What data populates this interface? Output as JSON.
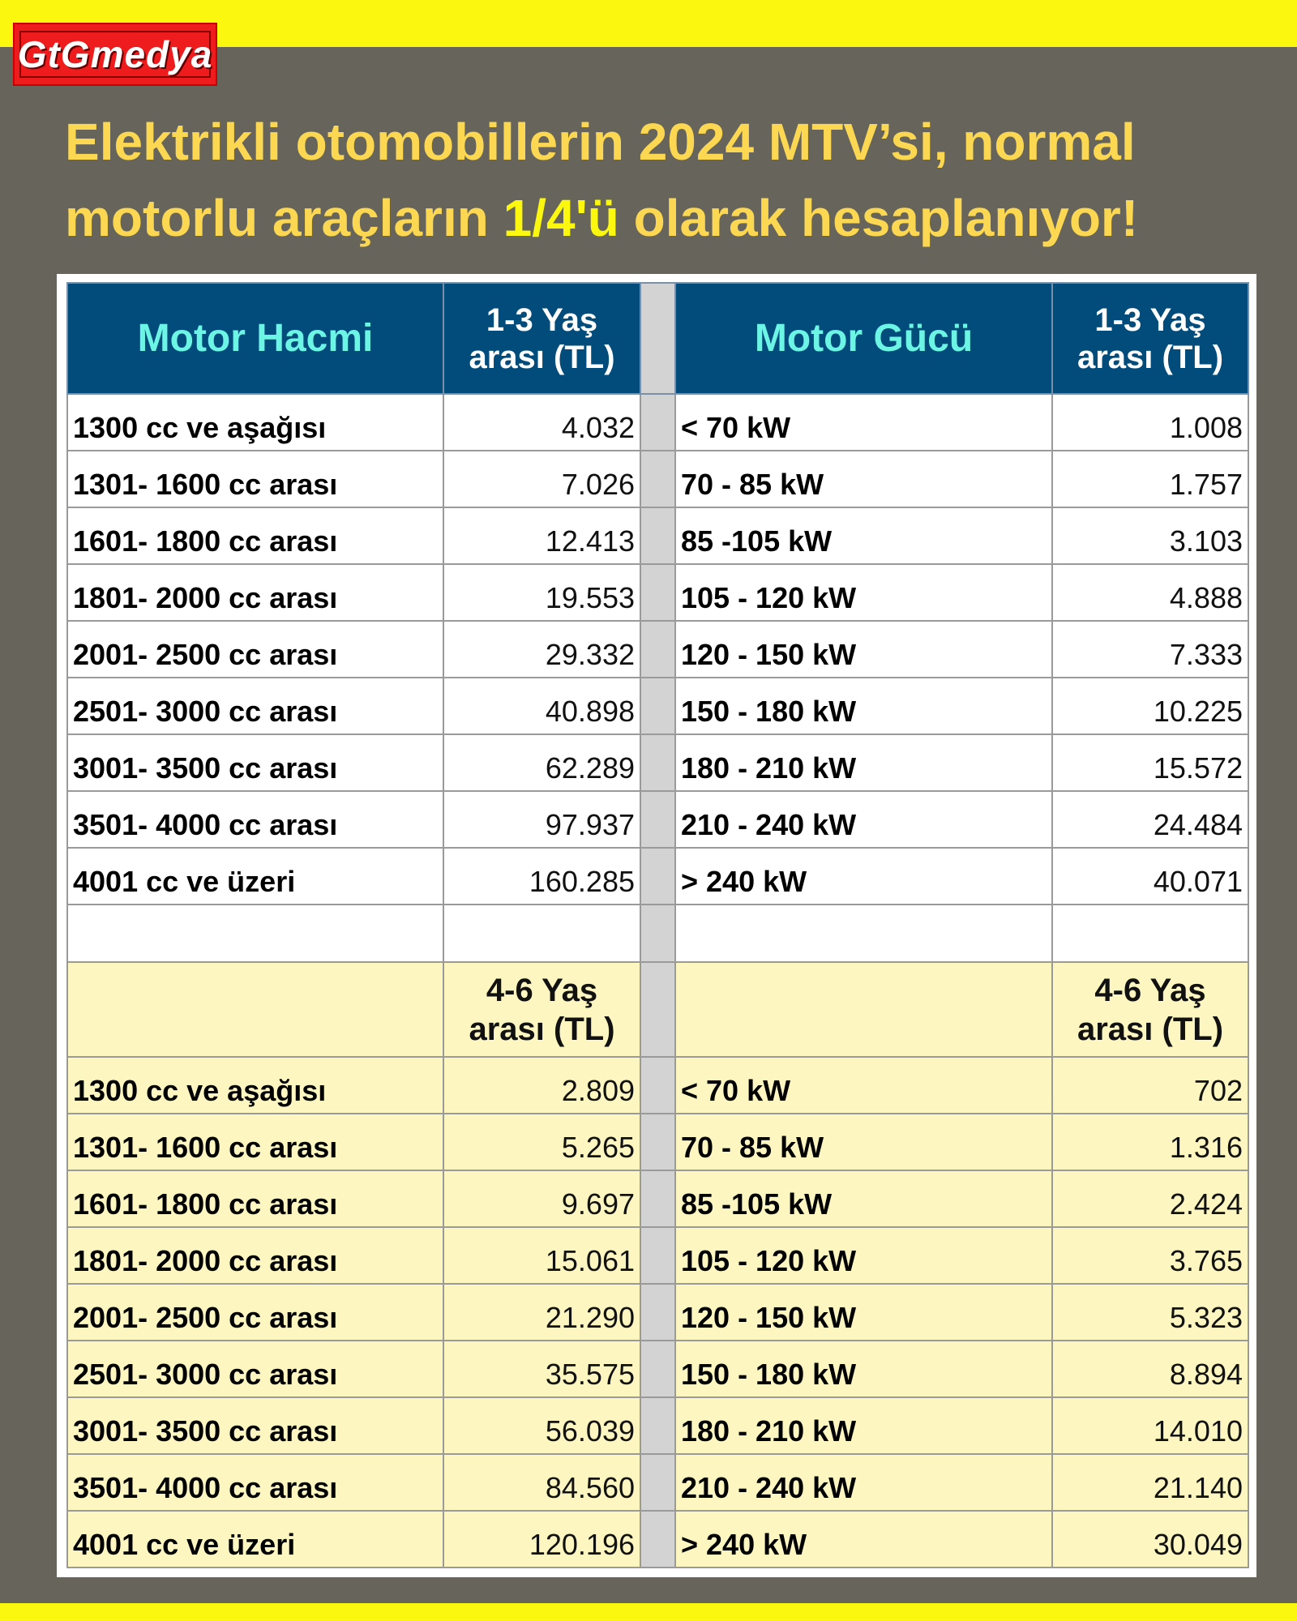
{
  "brand": {
    "logo_text": "GtGmedya",
    "colors": {
      "yellow": "#fbf70f",
      "red": "#ee1c1c",
      "navy": "#024c7c",
      "cyan": "#6cf4e4",
      "cream": "#fdf6c0",
      "bg": "#67645c"
    }
  },
  "title": {
    "part1": "Elektrikli otomobillerin 2024 MTV’si, normal motorlu araçların ",
    "highlight": "1/4'ü",
    "part2": " olarak hesaplanıyor!"
  },
  "table1": {
    "headers": [
      "Motor Hacmi",
      "1-3 Yaş arası (TL)",
      "Motor Gücü",
      "1-3 Yaş arası (TL)"
    ],
    "rows": [
      [
        "1300 cc ve aşağısı",
        "4.032",
        "< 70 kW",
        "1.008"
      ],
      [
        "1301- 1600 cc arası",
        "7.026",
        "70 - 85 kW",
        "1.757"
      ],
      [
        "1601- 1800 cc arası",
        "12.413",
        "85 -105 kW",
        "3.103"
      ],
      [
        "1801- 2000 cc arası",
        "19.553",
        "105 - 120 kW",
        "4.888"
      ],
      [
        "2001- 2500 cc arası",
        "29.332",
        "120 - 150 kW",
        "7.333"
      ],
      [
        "2501- 3000 cc arası",
        "40.898",
        "150 - 180 kW",
        "10.225"
      ],
      [
        "3001- 3500 cc arası",
        "62.289",
        "180 - 210 kW",
        "15.572"
      ],
      [
        "3501- 4000 cc arası",
        "97.937",
        "210 - 240 kW",
        "24.484"
      ],
      [
        "4001 cc ve üzeri",
        "160.285",
        "> 240 kW",
        "40.071"
      ]
    ]
  },
  "table2": {
    "headers": [
      "",
      "4-6 Yaş arası (TL)",
      "",
      "4-6 Yaş arası (TL)"
    ],
    "rows": [
      [
        "1300 cc ve aşağısı",
        "2.809",
        "< 70 kW",
        "702"
      ],
      [
        "1301- 1600 cc arası",
        "5.265",
        "70 - 85 kW",
        "1.316"
      ],
      [
        "1601- 1800 cc arası",
        "9.697",
        "85 -105 kW",
        "2.424"
      ],
      [
        "1801- 2000 cc arası",
        "15.061",
        "105 - 120 kW",
        "3.765"
      ],
      [
        "2001- 2500 cc arası",
        "21.290",
        "120 - 150 kW",
        "5.323"
      ],
      [
        "2501- 3000 cc arası",
        "35.575",
        "150 - 180 kW",
        "8.894"
      ],
      [
        "3001- 3500 cc arası",
        "56.039",
        "180 - 210 kW",
        "14.010"
      ],
      [
        "3501- 4000 cc arası",
        "84.560",
        "210 - 240 kW",
        "21.140"
      ],
      [
        "4001 cc ve üzeri",
        "120.196",
        "> 240 kW",
        "30.049"
      ]
    ]
  }
}
